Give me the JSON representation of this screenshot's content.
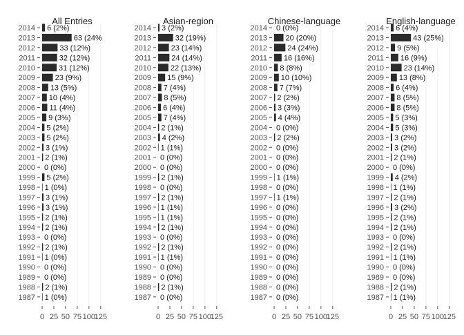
{
  "chart_data": {
    "type": "bar",
    "orientation": "horizontal",
    "categories": [
      "2014",
      "2013",
      "2012",
      "2011",
      "2010",
      "2009",
      "2008",
      "2007",
      "2006",
      "2005",
      "2004",
      "2003",
      "2002",
      "2001",
      "2000",
      "1999",
      "1998",
      "1997",
      "1996",
      "1995",
      "1994",
      "1993",
      "1992",
      "1991",
      "1990",
      "1989",
      "1988",
      "1987"
    ],
    "xlim": [
      0,
      140
    ],
    "xticks": [
      "0",
      "25",
      "50",
      "75",
      "100",
      "125"
    ],
    "grid": true,
    "bar_color": "#2b2b2b",
    "panels": [
      {
        "title": "All Entries",
        "values": [
          6,
          63,
          33,
          32,
          31,
          23,
          13,
          10,
          11,
          9,
          5,
          5,
          3,
          2,
          0,
          5,
          1,
          3,
          3,
          2,
          2,
          0,
          2,
          1,
          0,
          0,
          2,
          1
        ],
        "labels": [
          "6 (2%)",
          "63 (24%",
          "33 (12%)",
          "32 (12%)",
          "31 (12%)",
          "23 (9%)",
          "13 (5%)",
          "10 (4%)",
          "11 (4%)",
          "9 (3%)",
          "5 (2%)",
          "5 (2%)",
          "3 (1%)",
          "2 (1%)",
          "0 (0%)",
          "5 (2%)",
          "1 (0%)",
          "3 (1%)",
          "3 (1%)",
          "2 (1%)",
          "2 (1%)",
          "0 (0%)",
          "2 (1%)",
          "1 (0%)",
          "0 (0%)",
          "0 (0%)",
          "2 (1%)",
          "1 (0%)"
        ]
      },
      {
        "title": "Asian-region",
        "values": [
          3,
          32,
          23,
          24,
          22,
          15,
          7,
          8,
          6,
          7,
          2,
          4,
          1,
          0,
          0,
          2,
          0,
          2,
          1,
          1,
          2,
          0,
          2,
          1,
          0,
          0,
          2,
          0
        ],
        "labels": [
          "3 (2%)",
          "32 (19%)",
          "23 (14%)",
          "24 (14%)",
          "22 (13%)",
          "15 (9%)",
          "7 (4%)",
          "8 (5%)",
          "6 (4%)",
          "7 (4%)",
          "2 (1%)",
          "4 (2%)",
          "1 (1%)",
          "0 (0%)",
          "0 (0%)",
          "2 (1%)",
          "0 (0%)",
          "2 (1%)",
          "1 (1%)",
          "1 (1%)",
          "2 (1%)",
          "0 (0%)",
          "2 (1%)",
          "1 (1%)",
          "0 (0%)",
          "0 (0%)",
          "2 (1%)",
          "0 (0%)"
        ]
      },
      {
        "title": "Chinese-language",
        "values": [
          0,
          20,
          24,
          16,
          8,
          10,
          7,
          2,
          3,
          4,
          0,
          2,
          0,
          0,
          0,
          1,
          0,
          1,
          0,
          0,
          0,
          0,
          0,
          0,
          0,
          0,
          0,
          0
        ],
        "labels": [
          "0 (0%)",
          "20 (20%)",
          "24 (24%)",
          "16 (16%)",
          "8 (8%)",
          "10 (10%)",
          "7 (7%)",
          "2 (2%)",
          "3 (3%)",
          "4 (4%)",
          "0 (0%)",
          "2 (2%)",
          "0 (0%)",
          "0 (0%)",
          "0 (0%)",
          "1 (1%)",
          "0 (0%)",
          "1 (1%)",
          "0 (0%)",
          "0 (0%)",
          "0 (0%)",
          "0 (0%)",
          "0 (0%)",
          "0 (0%)",
          "0 (0%)",
          "0 (0%)",
          "0 (0%)",
          "0 (0%)"
        ]
      },
      {
        "title": "English-language",
        "values": [
          6,
          43,
          9,
          16,
          23,
          13,
          6,
          8,
          8,
          5,
          5,
          3,
          3,
          2,
          0,
          4,
          1,
          2,
          3,
          2,
          2,
          0,
          2,
          1,
          0,
          0,
          2,
          1
        ],
        "labels": [
          "6 (4%)",
          "43 (25%)",
          "9 (5%)",
          "16 (9%)",
          "23 (14%)",
          "13 (8%)",
          "6 (4%)",
          "8 (5%)",
          "8 (5%)",
          "5 (3%)",
          "5 (3%)",
          "3 (2%)",
          "3 (2%)",
          "2 (1%)",
          "0 (0%)",
          "4 (2%)",
          "1 (1%)",
          "2 (1%)",
          "3 (2%)",
          "2 (1%)",
          "2 (1%)",
          "0 (0%)",
          "2 (1%)",
          "1 (1%)",
          "0 (0%)",
          "0 (0%)",
          "2 (1%)",
          "1 (1%)"
        ]
      }
    ]
  }
}
